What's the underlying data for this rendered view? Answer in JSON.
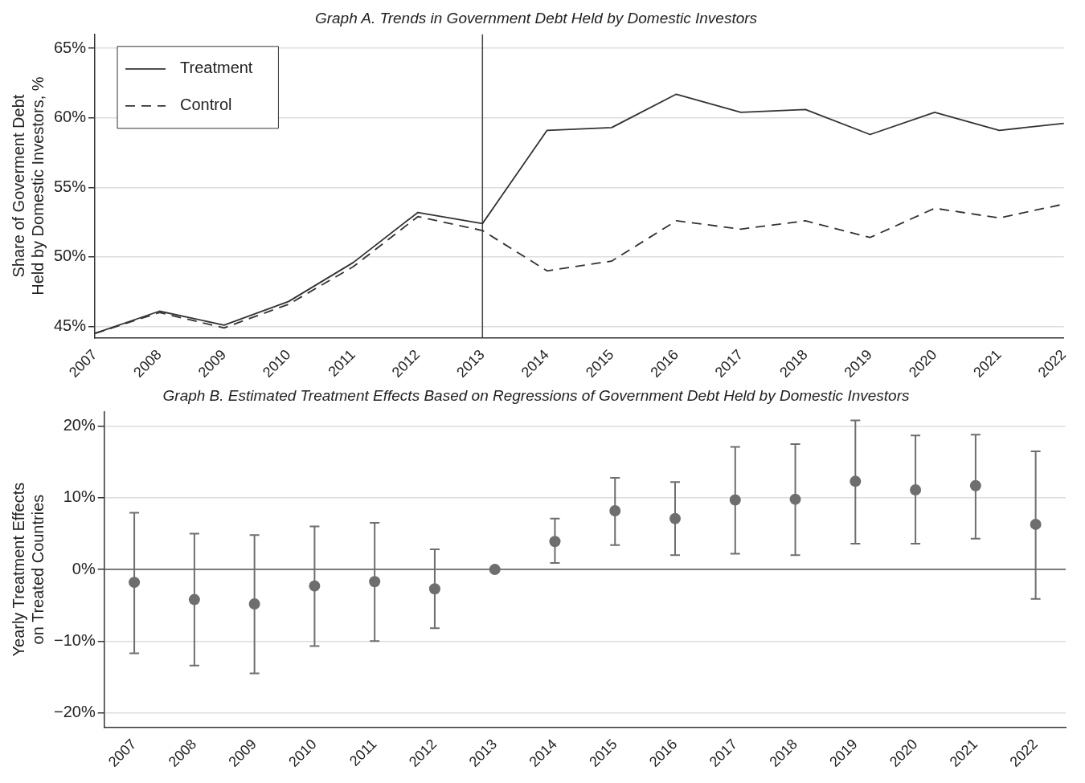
{
  "chart_data": [
    {
      "type": "line",
      "title": "Graph A. Trends in Government Debt Held by Domestic Investors",
      "ylabel": "Share of Goverment Debt\nHeld by Domestic Investors, %",
      "categories": [
        "2007",
        "2008",
        "2009",
        "2010",
        "2011",
        "2012",
        "2013",
        "2014",
        "2015",
        "2016",
        "2017",
        "2018",
        "2019",
        "2020",
        "2021",
        "2022"
      ],
      "series": [
        {
          "name": "Treatment",
          "color": "#333333",
          "line_style": "solid",
          "values": [
            44.5,
            46.1,
            45.1,
            46.8,
            49.6,
            53.2,
            52.4,
            59.1,
            59.3,
            61.7,
            60.4,
            60.6,
            58.8,
            60.4,
            59.1,
            59.6
          ]
        },
        {
          "name": "Control",
          "color": "#333333",
          "line_style": "dashed",
          "values": [
            44.5,
            46.0,
            44.9,
            46.6,
            49.3,
            52.9,
            51.9,
            49.0,
            49.7,
            52.6,
            52.0,
            52.6,
            51.4,
            53.5,
            52.8,
            53.8
          ]
        }
      ],
      "ylim": [
        44.2,
        66
      ],
      "yticks": [
        {
          "value": 45,
          "label": "45%"
        },
        {
          "value": 50,
          "label": "50%"
        },
        {
          "value": 55,
          "label": "55%"
        },
        {
          "value": 60,
          "label": "60%"
        },
        {
          "value": 65,
          "label": "65%"
        }
      ],
      "ref_lines": [
        {
          "axis": "x",
          "value": "2013",
          "color": "#444444"
        }
      ],
      "grid": "y",
      "legend": "top left"
    },
    {
      "type": "scatter",
      "title": "Graph B. Estimated Treatment Effects Based on Regressions of Government Debt Held by Domestic Investors",
      "ylabel": "Yearly Treatment Effects\non Treated Countries",
      "categories": [
        "2007",
        "2008",
        "2009",
        "2010",
        "2011",
        "2012",
        "2013",
        "2014",
        "2015",
        "2016",
        "2017",
        "2018",
        "2019",
        "2020",
        "2021",
        "2022"
      ],
      "series": [
        {
          "color": "#6e6e6e",
          "values": [
            -1.8,
            -4.2,
            -4.8,
            -2.3,
            -1.7,
            -2.7,
            0,
            3.9,
            8.2,
            7.1,
            9.7,
            9.8,
            12.3,
            11.1,
            11.7,
            6.3
          ],
          "errors": [
            [
              -11.7,
              7.9
            ],
            [
              -13.4,
              5.0
            ],
            [
              -14.5,
              4.8
            ],
            [
              -10.7,
              6.0
            ],
            [
              -10.0,
              6.5
            ],
            [
              -8.2,
              2.8
            ],
            null,
            [
              0.9,
              7.1
            ],
            [
              3.4,
              12.8
            ],
            [
              2.0,
              12.2
            ],
            [
              2.2,
              17.1
            ],
            [
              2.0,
              17.5
            ],
            [
              3.6,
              20.8
            ],
            [
              3.6,
              18.7
            ],
            [
              4.3,
              18.8
            ],
            [
              -4.1,
              16.5
            ]
          ]
        }
      ],
      "ylim": [
        -22,
        22
      ],
      "yticks": [
        {
          "value": -20,
          "label": "−20%"
        },
        {
          "value": -10,
          "label": "−10%"
        },
        {
          "value": 0,
          "label": "0%"
        },
        {
          "value": 10,
          "label": "10%"
        },
        {
          "value": 20,
          "label": "20%"
        }
      ],
      "ref_lines": [
        {
          "axis": "y",
          "value": 0,
          "color": "#555555"
        }
      ],
      "grid": "y",
      "marker": "circle"
    }
  ]
}
